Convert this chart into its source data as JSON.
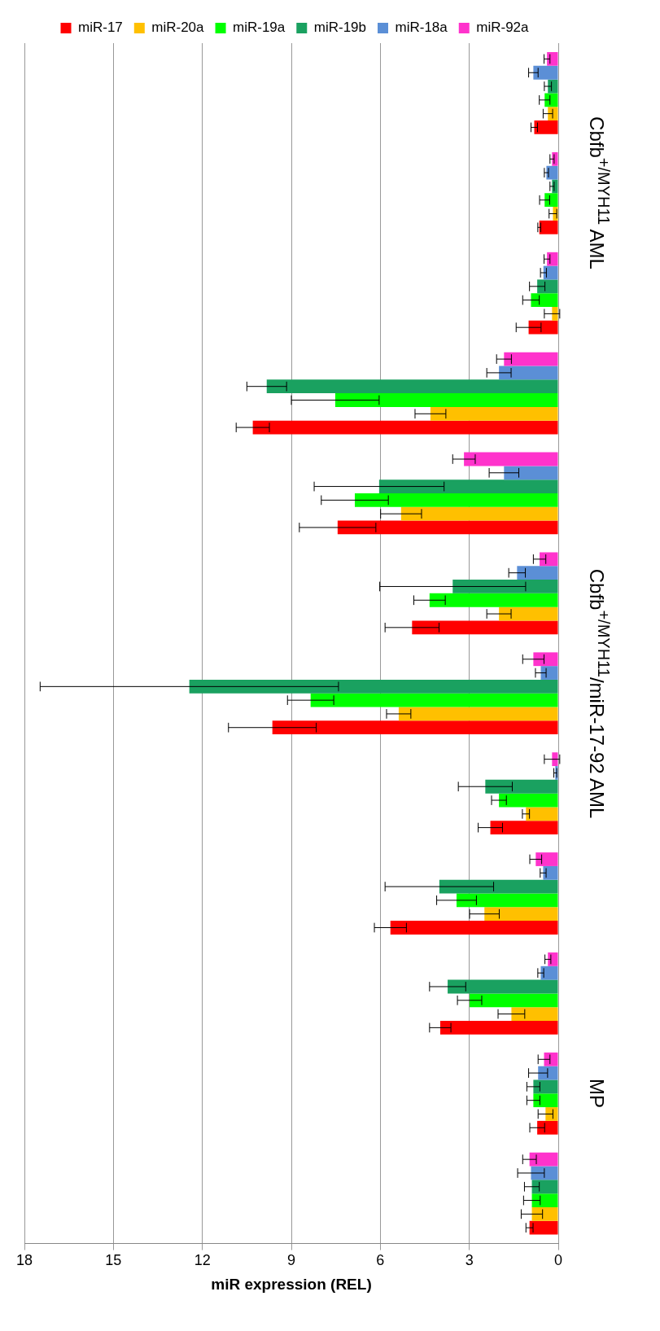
{
  "chart_data": {
    "type": "bar",
    "orientation": "horizontal",
    "xlabel": "miR expression (REL)",
    "categories": [
      null,
      "Cbfb$^{+/MYH11}$ AML",
      null,
      null,
      null,
      null,
      "Cbfb$^{+/MYH11}$/miR-17-92 AML",
      null,
      null,
      null,
      "MP",
      null
    ],
    "series": [
      {
        "name": "miR-17",
        "color": "#ff0000",
        "values": [
          0.81,
          0.64,
          1.0,
          10.3,
          7.44,
          4.93,
          9.64,
          2.29,
          5.66,
          3.98,
          0.71,
          0.97
        ],
        "errors": [
          0.11,
          0.05,
          0.42,
          0.56,
          1.29,
          0.91,
          1.48,
          0.41,
          0.54,
          0.36,
          0.25,
          0.12
        ]
      },
      {
        "name": "miR-20a",
        "color": "#ffc000",
        "values": [
          0.35,
          0.18,
          0.21,
          4.31,
          5.3,
          2.0,
          5.38,
          1.09,
          2.49,
          1.58,
          0.43,
          0.89
        ],
        "errors": [
          0.16,
          0.13,
          0.26,
          0.52,
          0.69,
          0.41,
          0.41,
          0.12,
          0.5,
          0.45,
          0.25,
          0.36
        ]
      },
      {
        "name": "miR-19a",
        "color": "#00ff00",
        "values": [
          0.46,
          0.46,
          0.92,
          7.52,
          6.86,
          4.34,
          8.35,
          2.0,
          3.43,
          2.99,
          0.84,
          0.89
        ],
        "errors": [
          0.18,
          0.17,
          0.28,
          1.48,
          1.13,
          0.53,
          0.78,
          0.25,
          0.67,
          0.41,
          0.22,
          0.28
        ]
      },
      {
        "name": "miR-19b",
        "color": "#1aa160",
        "values": [
          0.35,
          0.21,
          0.71,
          9.83,
          6.04,
          3.56,
          12.44,
          2.46,
          4.01,
          3.73,
          0.84,
          0.89
        ],
        "errors": [
          0.12,
          0.07,
          0.26,
          0.67,
          2.19,
          2.46,
          5.03,
          0.91,
          1.83,
          0.61,
          0.22,
          0.25
        ]
      },
      {
        "name": "miR-18a",
        "color": "#5b8fd6",
        "values": [
          0.84,
          0.4,
          0.5,
          2.0,
          1.83,
          1.39,
          0.59,
          0.1,
          0.51,
          0.59,
          0.68,
          0.92
        ],
        "errors": [
          0.16,
          0.07,
          0.1,
          0.41,
          0.5,
          0.28,
          0.18,
          0.05,
          0.1,
          0.1,
          0.32,
          0.45
        ]
      },
      {
        "name": "miR-92a",
        "color": "#ff33cc",
        "values": [
          0.38,
          0.21,
          0.38,
          1.83,
          3.18,
          0.63,
          0.84,
          0.21,
          0.76,
          0.35,
          0.48,
          0.97
        ],
        "errors": [
          0.1,
          0.07,
          0.1,
          0.25,
          0.38,
          0.21,
          0.36,
          0.26,
          0.2,
          0.1,
          0.2,
          0.23
        ]
      }
    ],
    "xlim": [
      18,
      0
    ],
    "xticks": [
      0,
      3,
      6,
      9,
      12,
      15,
      18
    ],
    "grid": "x",
    "legend": "top"
  }
}
